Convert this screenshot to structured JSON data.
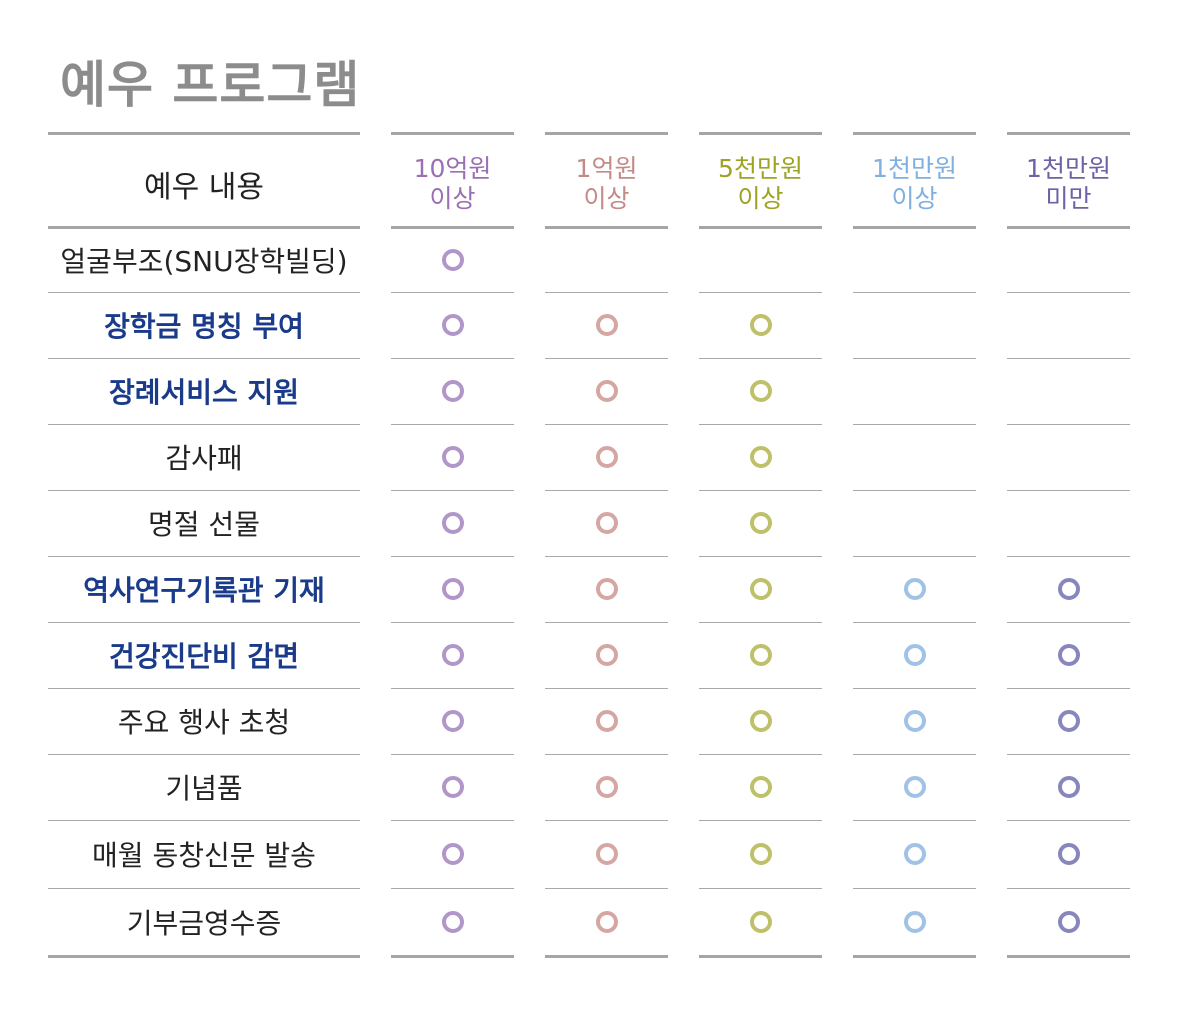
{
  "title": "예우 프로그램",
  "header": {
    "label": "예우 내용",
    "columns": [
      {
        "line1": "10억원",
        "line2": "이상",
        "color": "#9b6fb3",
        "mark_color": "#b196c9"
      },
      {
        "line1": "1억원",
        "line2": "이상",
        "color": "#c38a86",
        "mark_color": "#d5a7a3"
      },
      {
        "line1": "5천만원",
        "line2": "이상",
        "color": "#9ea324",
        "mark_color": "#bfc06a"
      },
      {
        "line1": "1천만원",
        "line2": "이상",
        "color": "#7fb0e0",
        "mark_color": "#9fc2e6"
      },
      {
        "line1": "1천만원",
        "line2": "미만",
        "color": "#6b63a6",
        "mark_color": "#8786bd"
      }
    ]
  },
  "rows": [
    {
      "label": "얼굴부조(SNU장학빌딩)",
      "emphasis": false,
      "marks": [
        true,
        false,
        false,
        false,
        false
      ]
    },
    {
      "label": "장학금 명칭 부여",
      "emphasis": true,
      "marks": [
        true,
        true,
        true,
        false,
        false
      ]
    },
    {
      "label": "장례서비스 지원",
      "emphasis": true,
      "marks": [
        true,
        true,
        true,
        false,
        false
      ]
    },
    {
      "label": "감사패",
      "emphasis": false,
      "marks": [
        true,
        true,
        true,
        false,
        false
      ]
    },
    {
      "label": "명절 선물",
      "emphasis": false,
      "marks": [
        true,
        true,
        true,
        false,
        false
      ]
    },
    {
      "label": "역사연구기록관 기재",
      "emphasis": true,
      "marks": [
        true,
        true,
        true,
        true,
        true
      ]
    },
    {
      "label": "건강진단비 감면",
      "emphasis": true,
      "marks": [
        true,
        true,
        true,
        true,
        true
      ]
    },
    {
      "label": "주요 행사 초청",
      "emphasis": false,
      "marks": [
        true,
        true,
        true,
        true,
        true
      ]
    },
    {
      "label": "기념품",
      "emphasis": false,
      "marks": [
        true,
        true,
        true,
        true,
        true
      ]
    },
    {
      "label": "매월 동창신문 발송",
      "emphasis": false,
      "marks": [
        true,
        true,
        true,
        true,
        true
      ]
    },
    {
      "label": "기부금영수증",
      "emphasis": false,
      "marks": [
        true,
        true,
        true,
        true,
        true
      ]
    }
  ]
}
